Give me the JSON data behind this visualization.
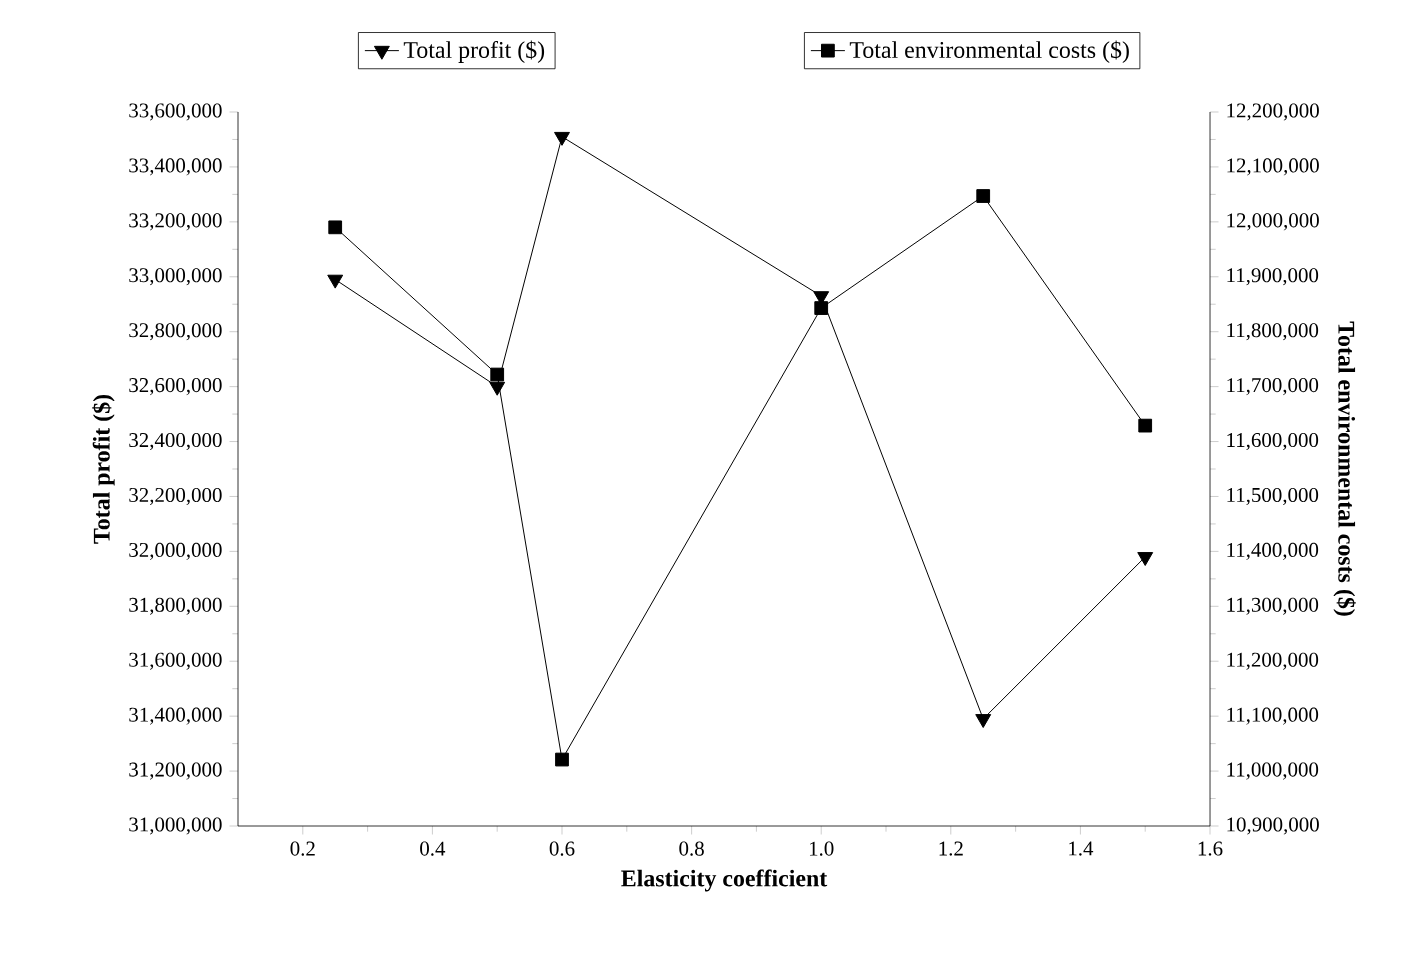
{
  "chart_data": {
    "type": "line",
    "xlabel": "Elasticity coefficient",
    "ylabel": "Total profit ($)",
    "y2label": "Total environmental costs ($)",
    "x": [
      0.25,
      0.5,
      0.6,
      1.0,
      1.25,
      1.5
    ],
    "series": [
      {
        "name": "Total profit ($)",
        "color": "#000000",
        "marker": "triangle",
        "values": [
          32990000,
          32600000,
          33510000,
          32930000,
          31390000,
          31980000
        ]
      },
      {
        "name": "Total environmental costs ($)",
        "color": "#000000",
        "marker": "square",
        "axis": "y2",
        "values": [
          11990000,
          11722000,
          11021000,
          11843000,
          12047000,
          11629000
        ]
      }
    ],
    "xlim": [
      0.1,
      1.6
    ],
    "xticks": [
      0.2,
      0.4,
      0.6,
      0.8,
      {
        "value": 1.0,
        "label": "1.0"
      },
      1.2,
      1.4,
      1.6
    ],
    "ylim": [
      31000000,
      33600000
    ],
    "yticks": [
      {
        "value": 31000000,
        "label": "31,000,000"
      },
      {
        "value": 31200000,
        "label": "31,200,000"
      },
      {
        "value": 31400000,
        "label": "31,400,000"
      },
      {
        "value": 31600000,
        "label": "31,600,000"
      },
      {
        "value": 31800000,
        "label": "31,800,000"
      },
      {
        "value": 32000000,
        "label": "32,000,000"
      },
      {
        "value": 32200000,
        "label": "32,200,000"
      },
      {
        "value": 32400000,
        "label": "32,400,000"
      },
      {
        "value": 32600000,
        "label": "32,600,000"
      },
      {
        "value": 32800000,
        "label": "32,800,000"
      },
      {
        "value": 33000000,
        "label": "33,000,000"
      },
      {
        "value": 33200000,
        "label": "33,200,000"
      },
      {
        "value": 33400000,
        "label": "33,400,000"
      },
      {
        "value": 33600000,
        "label": "33,600,000"
      }
    ],
    "y2lim": [
      10900000,
      12200000
    ],
    "y2ticks": [
      {
        "value": 10900000,
        "label": "10,900,000"
      },
      {
        "value": 11000000,
        "label": "11,000,000"
      },
      {
        "value": 11100000,
        "label": "11,100,000"
      },
      {
        "value": 11200000,
        "label": "11,200,000"
      },
      {
        "value": 11300000,
        "label": "11,300,000"
      },
      {
        "value": 11400000,
        "label": "11,400,000"
      },
      {
        "value": 11500000,
        "label": "11,500,000"
      },
      {
        "value": 11600000,
        "label": "11,600,000"
      },
      {
        "value": 11700000,
        "label": "11,700,000"
      },
      {
        "value": 11800000,
        "label": "11,800,000"
      },
      {
        "value": 11900000,
        "label": "11,900,000"
      },
      {
        "value": 12000000,
        "label": "12,000,000"
      },
      {
        "value": 12100000,
        "label": "12,100,000"
      },
      {
        "value": 12200000,
        "label": "12,200,000"
      }
    ],
    "legend": "top",
    "line_style": "solid",
    "grid": false
  }
}
